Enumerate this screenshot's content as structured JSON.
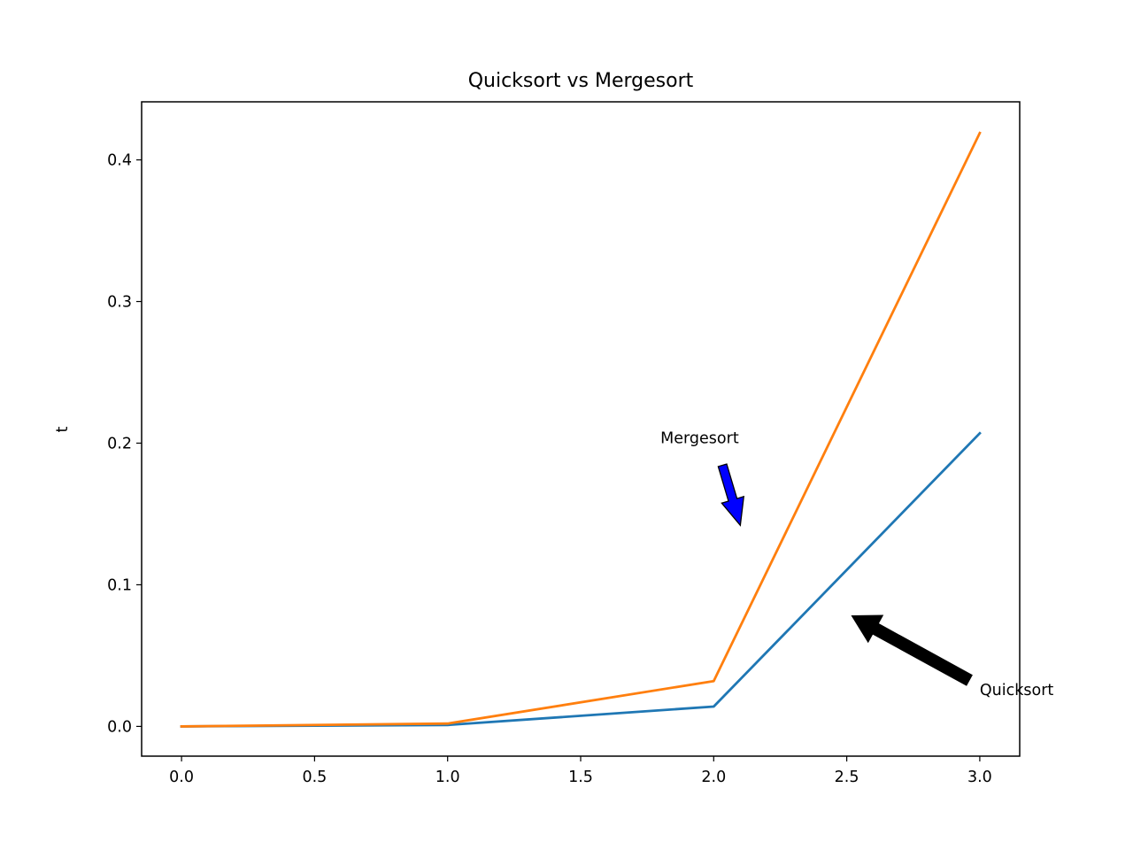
{
  "chart_data": {
    "type": "line",
    "title": "Quicksort vs Mergesort",
    "xlabel": "",
    "ylabel": "t",
    "xlim": [
      -0.15,
      3.15
    ],
    "ylim": [
      -0.021,
      0.441
    ],
    "grid": false,
    "x_ticks": [
      0.0,
      0.5,
      1.0,
      1.5,
      2.0,
      2.5,
      3.0
    ],
    "x_tick_labels": [
      "0.0",
      "0.5",
      "1.0",
      "1.5",
      "2.0",
      "2.5",
      "3.0"
    ],
    "y_ticks": [
      0.0,
      0.1,
      0.2,
      0.3,
      0.4
    ],
    "y_tick_labels": [
      "0.0",
      "0.1",
      "0.2",
      "0.3",
      "0.4"
    ],
    "x": [
      0,
      1,
      2,
      3
    ],
    "series": [
      {
        "values": [
          0.0,
          0.001,
          0.014,
          0.207
        ],
        "color": "#1f77b4"
      },
      {
        "values": [
          0.0,
          0.002,
          0.032,
          0.419
        ],
        "color": "#ff7f0e"
      }
    ],
    "annotations": [
      {
        "text": "Mergesort",
        "text_xy": [
          1.8,
          0.2
        ],
        "target_xy": [
          2.1,
          0.142
        ],
        "arrow_color": "#0000ff"
      },
      {
        "text": "Quicksort",
        "text_xy": [
          3.0,
          0.022
        ],
        "target_xy": [
          2.52,
          0.078
        ],
        "arrow_color": "#000000"
      }
    ]
  }
}
